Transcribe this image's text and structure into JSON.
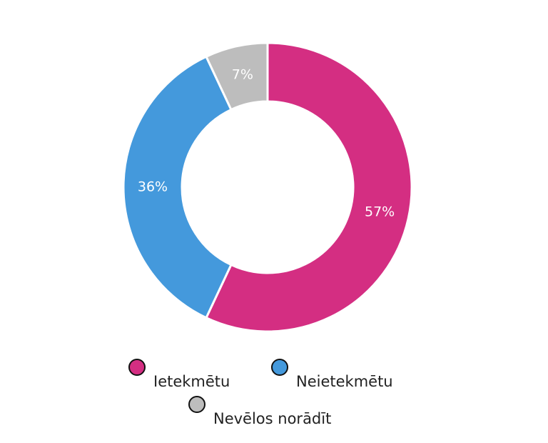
{
  "chart_data": {
    "type": "donut",
    "categories": [
      "Ietekmētu",
      "Neietekmētu",
      "Nevēlos norādīt"
    ],
    "values": [
      57,
      36,
      7
    ],
    "value_labels": [
      "57%",
      "36%",
      "7%"
    ],
    "colors": [
      "#d42e82",
      "#4499dc",
      "#bdbdbd"
    ]
  }
}
